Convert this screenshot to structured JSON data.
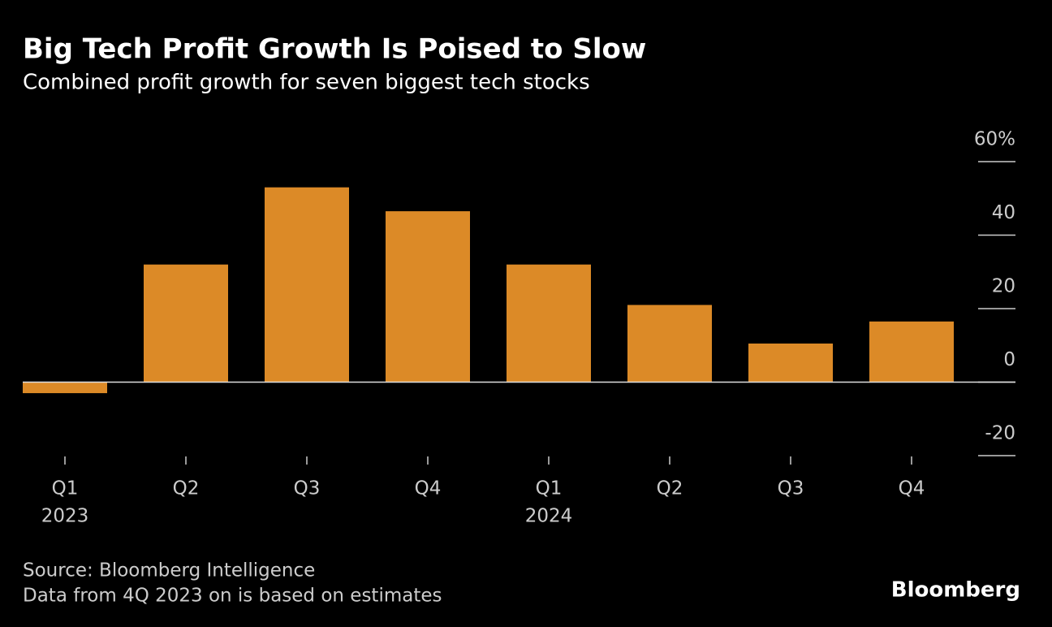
{
  "chart_data": {
    "type": "bar",
    "title": "Big Tech Profit Growth Is Poised to Slow",
    "subtitle": "Combined profit growth for seven biggest tech stocks",
    "categories": [
      "Q1",
      "Q2",
      "Q3",
      "Q4",
      "Q1",
      "Q2",
      "Q3",
      "Q4"
    ],
    "years": [
      "2023",
      null,
      null,
      null,
      "2024",
      null,
      null,
      null
    ],
    "values": [
      -3,
      32,
      53,
      46.5,
      32,
      21,
      10.5,
      16.5
    ],
    "color": "#dc8a27",
    "ylim": [
      -20,
      60
    ],
    "yticks": [
      -20,
      0,
      20,
      40,
      {
        "value": 60,
        "label": "60%"
      }
    ],
    "source": "Source: Bloomberg Intelligence",
    "note": "Data from 4Q 2023 on is based on estimates",
    "brand": "Bloomberg"
  }
}
